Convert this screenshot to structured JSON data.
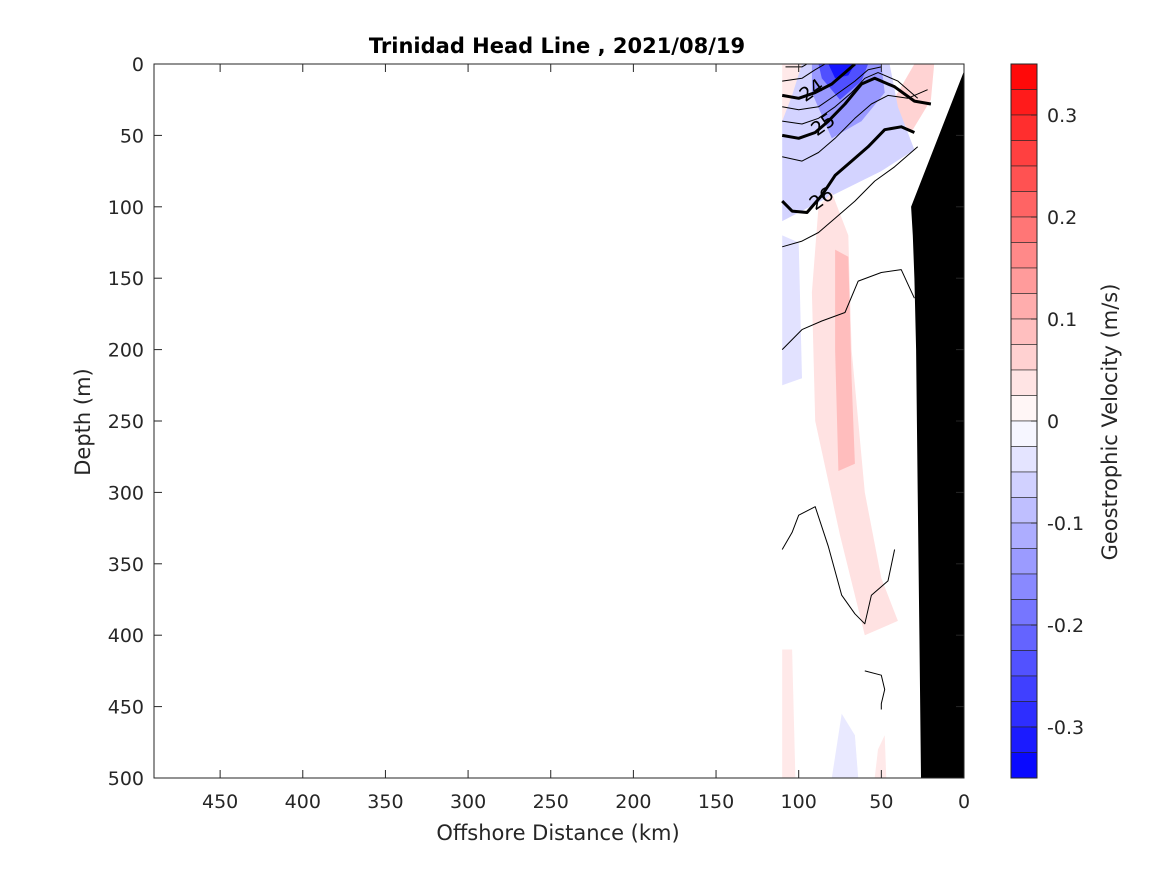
{
  "chart_data": {
    "type": "heatmap",
    "title": "Trinidad Head Line , 2021/08/19",
    "xlabel": "Offshore Distance (km)",
    "ylabel": "Depth (m)",
    "xlim": [
      490,
      0
    ],
    "ylim": [
      500,
      0
    ],
    "x_ticks": [
      450,
      400,
      350,
      300,
      250,
      200,
      150,
      100,
      50,
      0
    ],
    "y_ticks": [
      0,
      50,
      100,
      150,
      200,
      250,
      300,
      350,
      400,
      450,
      500
    ],
    "colorbar": {
      "label": "Geostrophic Velocity (m/s)",
      "range": [
        -0.35,
        0.35
      ],
      "ticks": [
        0.3,
        0.2,
        0.1,
        0,
        -0.1,
        -0.2,
        -0.3
      ],
      "low_color": "#0000ff",
      "mid_color": "#ffffff",
      "high_color": "#ff0000"
    },
    "contour_labels": [
      {
        "text": "24",
        "x": 90,
        "y": 22
      },
      {
        "text": "25",
        "x": 83,
        "y": 46
      },
      {
        "text": "26",
        "x": 84,
        "y": 98
      }
    ],
    "velocity_regions": [
      {
        "v": 0.03,
        "pts": [
          [
            110,
            0
          ],
          [
            62,
            0
          ],
          [
            58,
            8
          ],
          [
            72,
            22
          ],
          [
            90,
            38
          ],
          [
            110,
            46
          ]
        ]
      },
      {
        "v": 0.06,
        "pts": [
          [
            30,
            0
          ],
          [
            18,
            0
          ],
          [
            20,
            25
          ],
          [
            32,
            48
          ],
          [
            45,
            30
          ]
        ]
      },
      {
        "v": -0.06,
        "pts": [
          [
            98,
            0
          ],
          [
            45,
            0
          ],
          [
            40,
            30
          ],
          [
            30,
            60
          ],
          [
            50,
            75
          ],
          [
            85,
            95
          ],
          [
            110,
            110
          ],
          [
            110,
            40
          ],
          [
            104,
            22
          ]
        ]
      },
      {
        "v": -0.14,
        "pts": [
          [
            92,
            0
          ],
          [
            50,
            0
          ],
          [
            48,
            20
          ],
          [
            62,
            40
          ],
          [
            80,
            52
          ],
          [
            92,
            20
          ]
        ]
      },
      {
        "v": -0.24,
        "pts": [
          [
            88,
            0
          ],
          [
            58,
            0
          ],
          [
            62,
            12
          ],
          [
            75,
            25
          ],
          [
            86,
            10
          ]
        ]
      },
      {
        "v": -0.32,
        "pts": [
          [
            82,
            0
          ],
          [
            66,
            0
          ],
          [
            70,
            8
          ],
          [
            78,
            10
          ]
        ]
      },
      {
        "v": -0.04,
        "pts": [
          [
            110,
            120
          ],
          [
            100,
            125
          ],
          [
            98,
            220
          ],
          [
            110,
            225
          ]
        ]
      },
      {
        "v": 0.04,
        "pts": [
          [
            88,
            100
          ],
          [
            80,
            90
          ],
          [
            70,
            120
          ],
          [
            68,
            200
          ],
          [
            60,
            300
          ],
          [
            50,
            360
          ],
          [
            40,
            390
          ],
          [
            60,
            400
          ],
          [
            75,
            330
          ],
          [
            90,
            250
          ],
          [
            92,
            160
          ]
        ]
      },
      {
        "v": 0.09,
        "pts": [
          [
            78,
            130
          ],
          [
            70,
            135
          ],
          [
            68,
            220
          ],
          [
            66,
            280
          ],
          [
            76,
            285
          ],
          [
            78,
            200
          ]
        ]
      },
      {
        "v": 0.03,
        "pts": [
          [
            110,
            410
          ],
          [
            104,
            410
          ],
          [
            102,
            500
          ],
          [
            110,
            500
          ]
        ]
      },
      {
        "v": -0.03,
        "pts": [
          [
            80,
            500
          ],
          [
            74,
            455
          ],
          [
            66,
            470
          ],
          [
            64,
            500
          ]
        ]
      },
      {
        "v": 0.03,
        "pts": [
          [
            52,
            480
          ],
          [
            48,
            470
          ],
          [
            47,
            500
          ],
          [
            54,
            500
          ]
        ]
      }
    ],
    "contours": [
      {
        "w": 1,
        "pts": [
          [
            108,
            2
          ],
          [
            98,
            2
          ],
          [
            95,
            0
          ]
        ]
      },
      {
        "w": 1,
        "pts": [
          [
            110,
            12
          ],
          [
            98,
            10
          ],
          [
            90,
            4
          ],
          [
            84,
            0
          ]
        ]
      },
      {
        "w": 3,
        "pts": [
          [
            110,
            22
          ],
          [
            100,
            24
          ],
          [
            90,
            20
          ],
          [
            80,
            14
          ],
          [
            72,
            6
          ],
          [
            66,
            0
          ]
        ]
      },
      {
        "w": 1,
        "pts": [
          [
            110,
            30
          ],
          [
            100,
            32
          ],
          [
            88,
            30
          ],
          [
            78,
            22
          ],
          [
            66,
            12
          ],
          [
            58,
            4
          ],
          [
            50,
            2
          ]
        ]
      },
      {
        "w": 1,
        "pts": [
          [
            110,
            40
          ],
          [
            98,
            42
          ],
          [
            88,
            38
          ],
          [
            78,
            30
          ],
          [
            68,
            20
          ],
          [
            60,
            10
          ],
          [
            52,
            6
          ],
          [
            40,
            12
          ],
          [
            28,
            24
          ]
        ]
      },
      {
        "w": 3,
        "pts": [
          [
            110,
            50
          ],
          [
            100,
            52
          ],
          [
            90,
            48
          ],
          [
            82,
            40
          ],
          [
            72,
            28
          ],
          [
            62,
            14
          ],
          [
            54,
            10
          ],
          [
            42,
            16
          ],
          [
            30,
            26
          ],
          [
            20,
            28
          ]
        ]
      },
      {
        "w": 1,
        "pts": [
          [
            110,
            65
          ],
          [
            98,
            68
          ],
          [
            88,
            62
          ],
          [
            78,
            52
          ],
          [
            66,
            38
          ],
          [
            56,
            28
          ],
          [
            46,
            22
          ],
          [
            34,
            24
          ],
          [
            22,
            18
          ]
        ]
      },
      {
        "w": 3,
        "pts": [
          [
            110,
            96
          ],
          [
            104,
            103
          ],
          [
            95,
            104
          ],
          [
            86,
            92
          ],
          [
            78,
            78
          ],
          [
            68,
            68
          ],
          [
            58,
            58
          ],
          [
            48,
            46
          ],
          [
            38,
            44
          ],
          [
            30,
            48
          ]
        ]
      },
      {
        "w": 1,
        "pts": [
          [
            110,
            128
          ],
          [
            98,
            124
          ],
          [
            88,
            118
          ],
          [
            78,
            108
          ],
          [
            66,
            96
          ],
          [
            54,
            82
          ],
          [
            42,
            72
          ],
          [
            28,
            58
          ]
        ]
      },
      {
        "w": 1,
        "pts": [
          [
            110,
            200
          ],
          [
            98,
            186
          ],
          [
            86,
            180
          ],
          [
            72,
            174
          ],
          [
            64,
            152
          ],
          [
            50,
            146
          ],
          [
            38,
            144
          ],
          [
            34,
            154
          ],
          [
            30,
            164
          ]
        ]
      },
      {
        "w": 1,
        "pts": [
          [
            110,
            340
          ],
          [
            104,
            328
          ],
          [
            100,
            316
          ],
          [
            90,
            310
          ],
          [
            82,
            338
          ],
          [
            74,
            372
          ],
          [
            66,
            385
          ],
          [
            60,
            392
          ],
          [
            56,
            372
          ],
          [
            46,
            362
          ],
          [
            42,
            340
          ]
        ]
      },
      {
        "w": 1,
        "pts": [
          [
            60,
            425
          ],
          [
            50,
            428
          ],
          [
            48,
            438
          ],
          [
            50,
            448
          ],
          [
            50,
            452
          ]
        ]
      }
    ],
    "bathymetry_pts": [
      [
        0,
        0
      ],
      [
        0,
        500
      ],
      [
        26,
        500
      ],
      [
        27,
        400
      ],
      [
        28,
        300
      ],
      [
        29,
        200
      ],
      [
        30,
        150
      ],
      [
        31,
        120
      ],
      [
        32,
        100
      ],
      [
        0,
        5
      ]
    ]
  }
}
